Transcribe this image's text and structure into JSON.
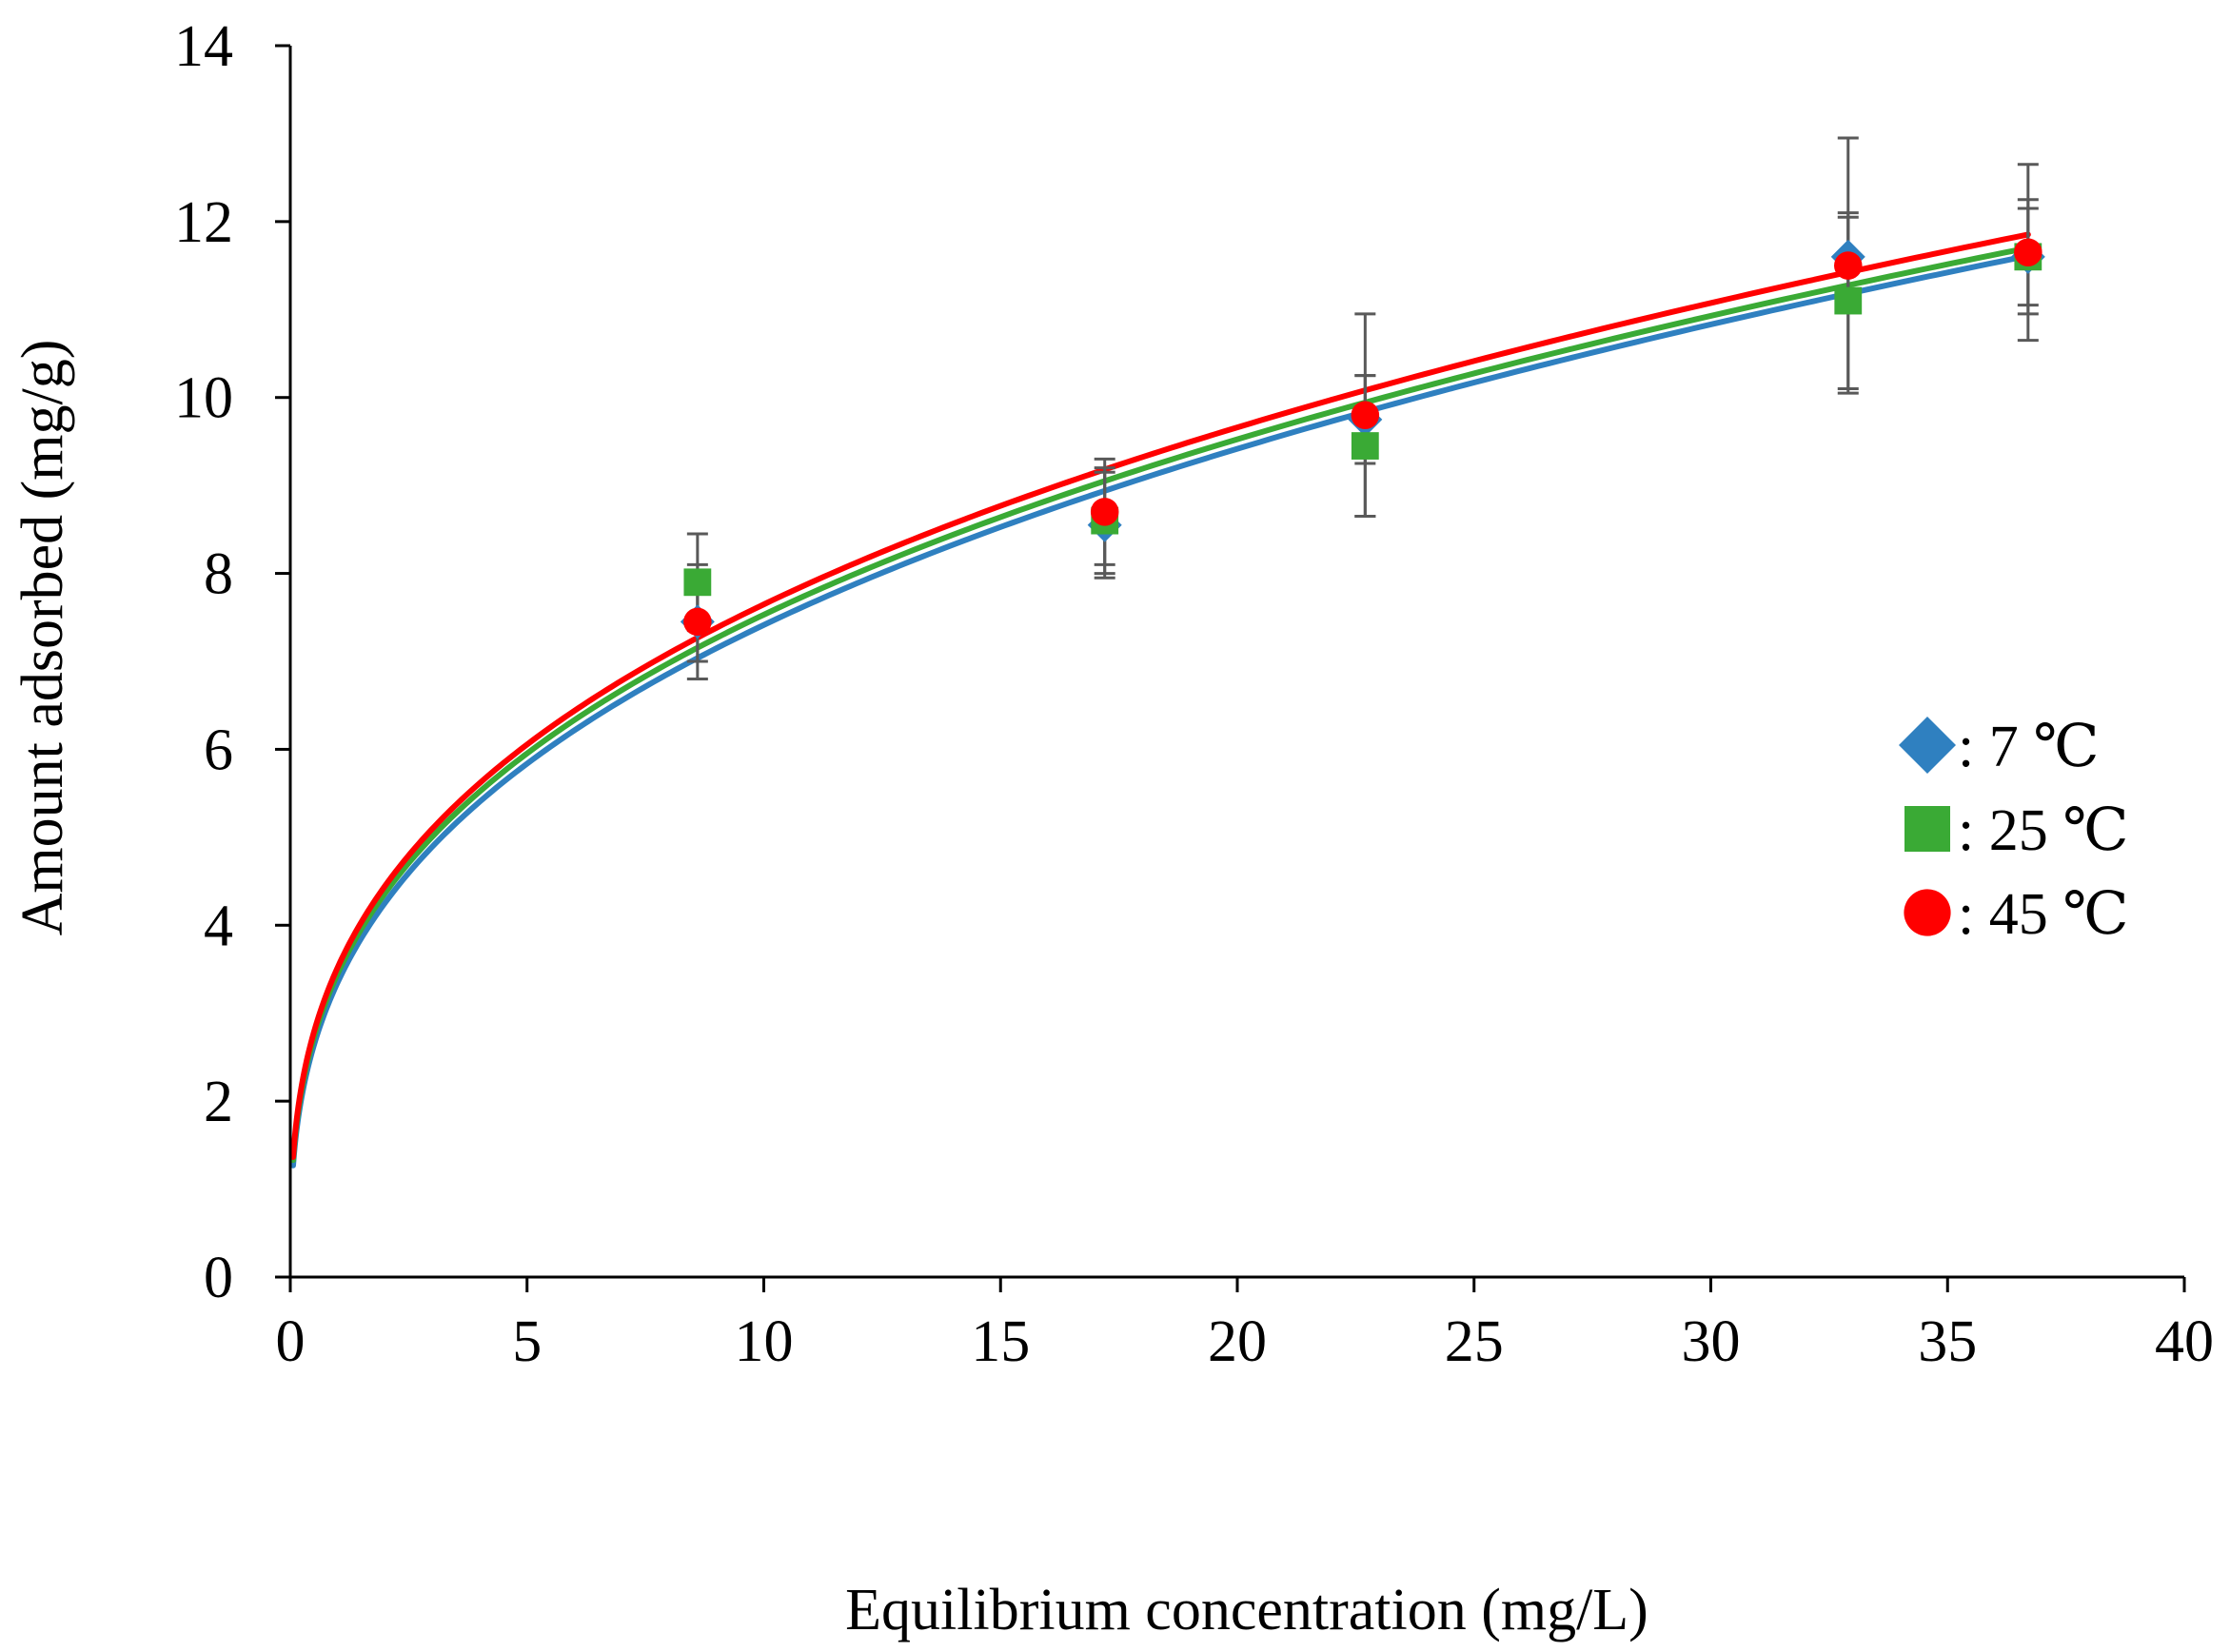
{
  "chart_data": {
    "type": "scatter",
    "title": "",
    "xlabel": "Equilibrium concentration (mg/L)",
    "ylabel": "Amount adsorbed (mg/g)",
    "xlim": [
      0,
      40
    ],
    "ylim": [
      0,
      14
    ],
    "xticks": [
      0,
      5,
      10,
      15,
      20,
      25,
      30,
      35,
      40
    ],
    "yticks": [
      0,
      2,
      4,
      6,
      8,
      10,
      12,
      14
    ],
    "grid": false,
    "legend_position": "right",
    "series": [
      {
        "name": ": 7 ℃",
        "marker": "diamond",
        "color": "#2F80C0",
        "points": [
          {
            "x": 8.6,
            "y": 7.45,
            "err": 0.45
          },
          {
            "x": 17.2,
            "y": 8.55,
            "err": 0.6
          },
          {
            "x": 22.7,
            "y": 9.75,
            "err": 0.5
          },
          {
            "x": 32.9,
            "y": 11.6,
            "err": 0.45
          },
          {
            "x": 36.7,
            "y": 11.6,
            "err": 0.55
          }
        ],
        "fit": {
          "model": "freundlich",
          "kf": 3.35,
          "n": 0.345
        }
      },
      {
        "name": ": 25 ℃",
        "marker": "square",
        "color": "#3AAA35",
        "points": [
          {
            "x": 8.6,
            "y": 7.9,
            "err": 0.55
          },
          {
            "x": 17.2,
            "y": 8.6,
            "err": 0.6
          },
          {
            "x": 22.7,
            "y": 9.45,
            "err": 0.8
          },
          {
            "x": 32.9,
            "y": 11.1,
            "err": 1.0
          },
          {
            "x": 36.7,
            "y": 11.6,
            "err": 0.65
          }
        ],
        "fit": {
          "model": "freundlich",
          "kf": 3.45,
          "n": 0.339
        }
      },
      {
        "name": ": 45 ℃",
        "marker": "circle",
        "color": "#FF0000",
        "points": [
          {
            "x": 8.6,
            "y": 7.45,
            "err": 0.65
          },
          {
            "x": 17.2,
            "y": 8.7,
            "err": 0.6
          },
          {
            "x": 22.7,
            "y": 9.8,
            "err": 1.15
          },
          {
            "x": 32.9,
            "y": 11.5,
            "err": 1.45
          },
          {
            "x": 36.7,
            "y": 11.65,
            "err": 1.0
          }
        ],
        "fit": {
          "model": "freundlich",
          "kf": 3.52,
          "n": 0.337
        }
      }
    ]
  }
}
